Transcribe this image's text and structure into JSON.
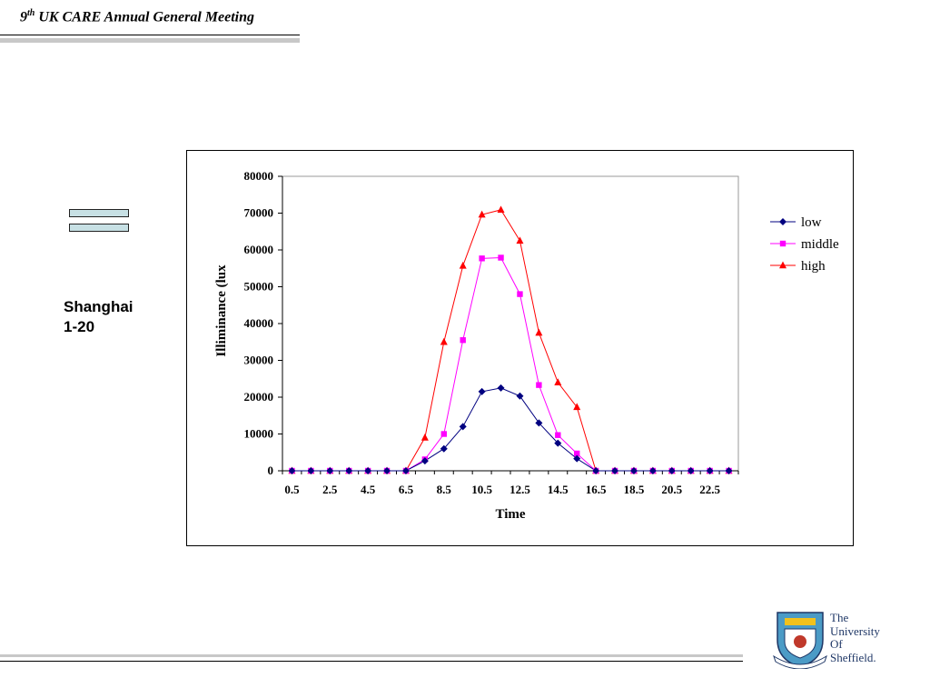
{
  "header": {
    "title_num": "9",
    "title_sup": "th",
    "title_rest": " UK CARE Annual General Meeting"
  },
  "side": {
    "line1": "Shanghai",
    "line2": "1-20"
  },
  "logo": {
    "line1": "The",
    "line2": "University",
    "line3": "Of",
    "line4": "Sheffield."
  },
  "chart_data": {
    "type": "line",
    "xlabel": "Time",
    "ylabel": "Illiminance (lux",
    "ylim": [
      0,
      80000
    ],
    "yticks": [
      0,
      10000,
      20000,
      30000,
      40000,
      50000,
      60000,
      70000,
      80000
    ],
    "x": [
      0.5,
      1.5,
      2.5,
      3.5,
      4.5,
      5.5,
      6.5,
      7.5,
      8.5,
      9.5,
      10.5,
      11.5,
      12.5,
      13.5,
      14.5,
      15.5,
      16.5,
      17.5,
      18.5,
      19.5,
      20.5,
      21.5,
      22.5,
      23.5
    ],
    "xticklabels": [
      "0.5",
      "2.5",
      "4.5",
      "6.5",
      "8.5",
      "10.5",
      "12.5",
      "14.5",
      "16.5",
      "18.5",
      "20.5",
      "22.5"
    ],
    "legend_position": "right",
    "grid": false,
    "series": [
      {
        "name": "low",
        "color": "#000080",
        "marker": "diamond",
        "values": [
          0,
          0,
          0,
          0,
          0,
          0,
          0,
          2700,
          6000,
          12000,
          21500,
          22500,
          20300,
          13000,
          7500,
          3300,
          0,
          0,
          0,
          0,
          0,
          0,
          0,
          0
        ]
      },
      {
        "name": "middle",
        "color": "#ff00ff",
        "marker": "square",
        "values": [
          0,
          0,
          0,
          0,
          0,
          0,
          0,
          3100,
          10000,
          35500,
          57700,
          57900,
          48000,
          23300,
          9700,
          4700,
          0,
          0,
          0,
          0,
          0,
          0,
          0,
          0
        ]
      },
      {
        "name": "high",
        "color": "#ff0000",
        "marker": "triangle",
        "values": [
          0,
          0,
          0,
          0,
          0,
          0,
          0,
          9000,
          35000,
          55700,
          69600,
          70900,
          62500,
          37500,
          24000,
          17300,
          0,
          0,
          0,
          0,
          0,
          0,
          0,
          0
        ]
      }
    ]
  }
}
